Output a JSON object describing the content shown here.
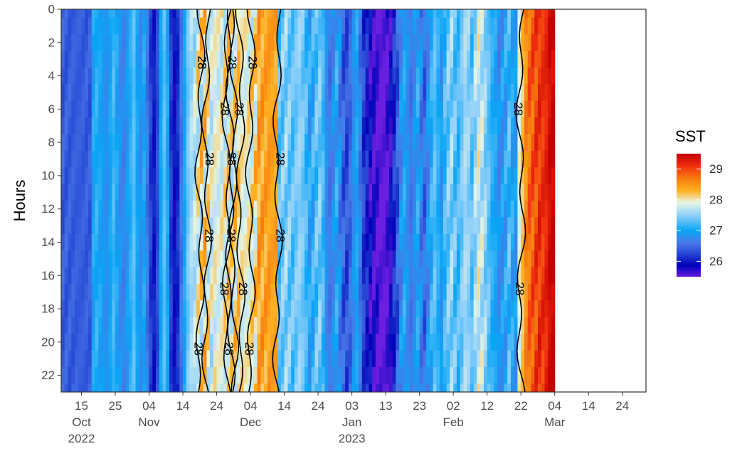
{
  "chart_data": {
    "type": "heatmap",
    "title": "",
    "xlabel": "",
    "ylabel": "Hours",
    "legend": {
      "title": "SST",
      "position": "right",
      "range": [
        25.5,
        29.5
      ],
      "ticks": [
        26,
        27,
        28,
        29
      ]
    },
    "colors": {
      "scale": [
        "#6a1ee0",
        "#0000b8",
        "#2a4ed6",
        "#4a78e8",
        "#0aa5f5",
        "#8fd0fa",
        "#e6f6e6",
        "#ffb020",
        "#f77a10",
        "#f03010",
        "#c40000"
      ],
      "scale_values": [
        25.5,
        25.85,
        26.3,
        26.6,
        27.0,
        27.5,
        27.9,
        28.3,
        28.7,
        29.1,
        29.5
      ],
      "contour": "#000000",
      "frame": "#333333"
    },
    "y": {
      "lim": [
        0,
        23
      ],
      "ticks": [
        0,
        2,
        4,
        6,
        8,
        10,
        12,
        14,
        16,
        18,
        20,
        22
      ],
      "reversed": true
    },
    "x": {
      "lim": [
        "2022-10-09",
        "2023-03-31"
      ],
      "ticks": [
        {
          "date": "2022-10-15",
          "label": [
            "15",
            "Oct",
            "2022"
          ]
        },
        {
          "date": "2022-10-25",
          "label": [
            "25"
          ]
        },
        {
          "date": "2022-11-04",
          "label": [
            "04",
            "Nov"
          ]
        },
        {
          "date": "2022-11-14",
          "label": [
            "14"
          ]
        },
        {
          "date": "2022-11-24",
          "label": [
            "24"
          ]
        },
        {
          "date": "2022-12-04",
          "label": [
            "04",
            "Dec"
          ]
        },
        {
          "date": "2022-12-14",
          "label": [
            "14"
          ]
        },
        {
          "date": "2022-12-24",
          "label": [
            "24"
          ]
        },
        {
          "date": "2023-01-03",
          "label": [
            "03",
            "Jan",
            "2023"
          ]
        },
        {
          "date": "2023-01-13",
          "label": [
            "13"
          ]
        },
        {
          "date": "2023-01-23",
          "label": [
            "23"
          ]
        },
        {
          "date": "2023-02-02",
          "label": [
            "02",
            "Feb"
          ]
        },
        {
          "date": "2023-02-12",
          "label": [
            "12"
          ]
        },
        {
          "date": "2023-02-22",
          "label": [
            "22"
          ]
        },
        {
          "date": "2023-03-04",
          "label": [
            "04",
            "Mar"
          ]
        },
        {
          "date": "2023-03-14",
          "label": [
            "14"
          ]
        },
        {
          "date": "2023-03-24",
          "label": [
            "24"
          ]
        }
      ]
    },
    "contour_level": 28,
    "contour_labels": [
      "28",
      "28",
      "28",
      "28",
      "28",
      "28",
      "28",
      "28",
      "28",
      "28",
      "28",
      "28",
      "28",
      "28",
      "28",
      "28",
      "28",
      "28",
      "28",
      "28"
    ],
    "sst_daily_mean": [
      26.4,
      26.4,
      26.4,
      26.4,
      26.4,
      26.4,
      26.4,
      26.4,
      26.4,
      27.0,
      27.1,
      27.0,
      26.9,
      26.8,
      27.0,
      27.2,
      27.0,
      26.8,
      26.7,
      26.9,
      27.1,
      27.3,
      27.0,
      26.8,
      27.0,
      26.6,
      26.2,
      26.0,
      26.3,
      27.0,
      27.3,
      27.0,
      26.2,
      25.9,
      26.1,
      26.6,
      27.0,
      27.4,
      27.6,
      27.7,
      27.9,
      28.0,
      28.1,
      27.95,
      27.8,
      27.9,
      27.85,
      27.9,
      27.95,
      28.0,
      27.9,
      28.05,
      28.1,
      27.95,
      27.9,
      27.95,
      28.0,
      28.1,
      28.4,
      28.4,
      28.4,
      28.45,
      28.4,
      28.4,
      27.3,
      27.4,
      27.5,
      27.4,
      27.3,
      27.4,
      27.5,
      27.4,
      27.2,
      27.0,
      27.1,
      27.3,
      27.4,
      27.2,
      26.8,
      26.6,
      26.8,
      27.0,
      26.7,
      26.4,
      26.3,
      26.5,
      26.8,
      27.0,
      26.6,
      26.2,
      26.0,
      25.8,
      25.7,
      25.6,
      25.5,
      25.5,
      25.6,
      25.8,
      26.1,
      26.4,
      26.8,
      27.0,
      26.8,
      26.6,
      26.8,
      27.0,
      26.7,
      26.5,
      26.8,
      27.1,
      27.3,
      27.1,
      26.9,
      27.2,
      27.4,
      27.5,
      27.3,
      27.2,
      27.4,
      27.6,
      27.5,
      27.3,
      27.6,
      27.8,
      27.7,
      27.5,
      27.3,
      27.1,
      27.0,
      26.8,
      26.9,
      27.0,
      27.2,
      27.0,
      26.9,
      27.9,
      28.2,
      28.6,
      28.8,
      28.9,
      29.0,
      29.1,
      29.1,
      29.2,
      29.4,
      29.5
    ],
    "sst_hourly_amplitude": [
      0.1,
      0.1,
      0.1,
      0.1,
      0.1,
      0.1,
      0.1,
      0.1,
      0.1,
      0.1,
      0.1,
      0.1,
      0.1,
      0.1,
      0.1,
      0.1,
      0.1,
      0.1,
      0.1,
      0.1,
      0.1,
      0.1,
      0.1,
      0.1,
      0.1,
      0.1,
      0.1,
      0.1,
      0.1,
      0.1,
      0.1,
      0.1,
      0.1,
      0.1,
      0.1,
      0.1,
      0.1,
      0.15,
      0.2,
      0.25,
      0.3,
      0.35,
      0.35,
      0.3,
      0.3,
      0.3,
      0.3,
      0.3,
      0.3,
      0.3,
      0.3,
      0.3,
      0.3,
      0.3,
      0.3,
      0.3,
      0.3,
      0.3,
      0.2,
      0.2,
      0.2,
      0.2,
      0.2,
      0.2,
      0.2,
      0.2,
      0.2,
      0.2,
      0.2,
      0.2,
      0.2,
      0.2,
      0.2,
      0.2,
      0.2,
      0.2,
      0.2,
      0.2,
      0.2,
      0.2,
      0.2,
      0.2,
      0.2,
      0.2,
      0.2,
      0.2,
      0.2,
      0.2,
      0.2,
      0.2,
      0.2,
      0.2,
      0.2,
      0.2,
      0.2,
      0.2,
      0.2,
      0.2,
      0.2,
      0.2,
      0.2,
      0.2,
      0.2,
      0.2,
      0.2,
      0.2,
      0.2,
      0.2,
      0.2,
      0.2,
      0.2,
      0.2,
      0.2,
      0.2,
      0.2,
      0.2,
      0.2,
      0.2,
      0.2,
      0.2,
      0.2,
      0.2,
      0.2,
      0.2,
      0.2,
      0.2,
      0.2,
      0.2,
      0.2,
      0.2,
      0.2,
      0.2,
      0.2,
      0.2,
      0.2,
      0.2,
      0.2,
      0.2,
      0.2,
      0.2,
      0.2,
      0.2,
      0.2,
      0.2,
      0.2,
      0.2,
      0.2,
      0.2
    ]
  }
}
